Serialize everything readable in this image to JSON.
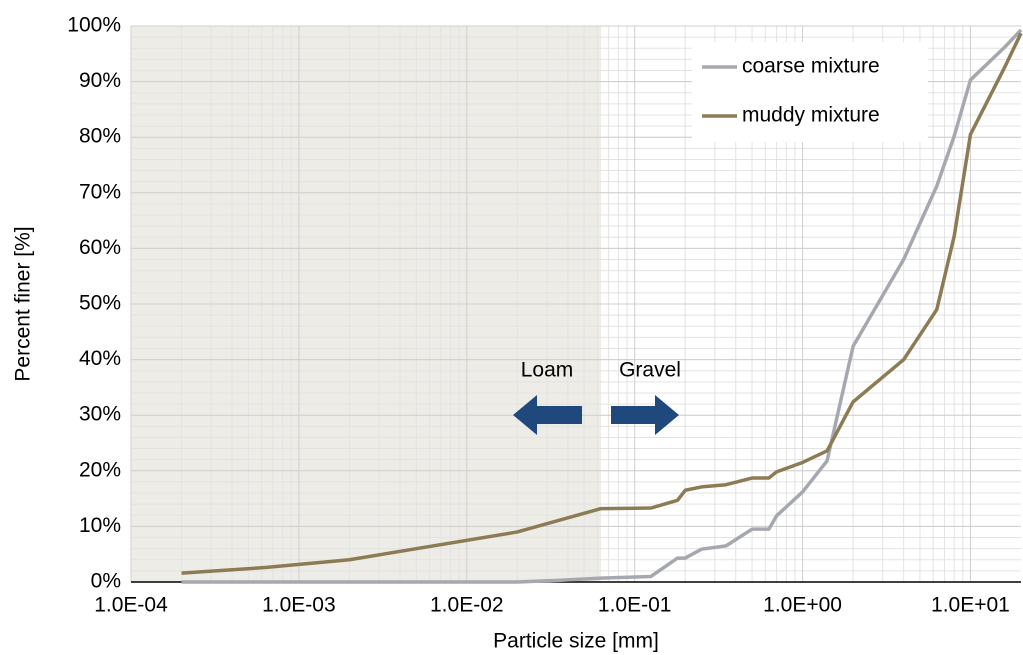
{
  "chart_data": {
    "type": "line",
    "xlabel": "Particle size [mm]",
    "ylabel": "Percent finer [%]",
    "xscale": "log",
    "xlim": [
      0.0001,
      20
    ],
    "ylim": [
      0,
      100
    ],
    "xticks": [
      {
        "value": 0.0001,
        "label": "1.0E-04"
      },
      {
        "value": 0.001,
        "label": "1.0E-03"
      },
      {
        "value": 0.01,
        "label": "1.0E-02"
      },
      {
        "value": 0.1,
        "label": "1.0E-01"
      },
      {
        "value": 1,
        "label": "1.0E+00"
      },
      {
        "value": 10,
        "label": "1.0E+01"
      }
    ],
    "yticks": [
      {
        "value": 0,
        "label": "0%"
      },
      {
        "value": 10,
        "label": "10%"
      },
      {
        "value": 20,
        "label": "20%"
      },
      {
        "value": 30,
        "label": "30%"
      },
      {
        "value": 40,
        "label": "40%"
      },
      {
        "value": 50,
        "label": "50%"
      },
      {
        "value": 60,
        "label": "60%"
      },
      {
        "value": 70,
        "label": "70%"
      },
      {
        "value": 80,
        "label": "80%"
      },
      {
        "value": 90,
        "label": "90%"
      },
      {
        "value": 100,
        "label": "100%"
      }
    ],
    "grid": true,
    "legend": "upper right",
    "shaded_region": {
      "xlim": [
        0.0001,
        0.063
      ],
      "color": "#edece6"
    },
    "annotations": [
      "Loam",
      "Gravel"
    ],
    "series": [
      {
        "name": "coarse mixture",
        "color": "#a6a8b0",
        "x": [
          0.0002,
          0.02,
          0.035,
          0.063,
          0.125,
          0.18,
          0.2,
          0.25,
          0.35,
          0.5,
          0.63,
          0.7,
          1.0,
          1.4,
          2.0,
          4.0,
          6.3,
          8.0,
          10,
          16,
          20
        ],
        "values": [
          0,
          0,
          0.3,
          0.7,
          1.0,
          4.3,
          4.3,
          5.9,
          6.5,
          9.5,
          9.5,
          11.9,
          16.2,
          21.8,
          42.4,
          58.0,
          71.2,
          80.2,
          90.3,
          96.2,
          99.3
        ]
      },
      {
        "name": "muddy mixture",
        "color": "#8c7b55",
        "x": [
          0.0002,
          0.00063,
          0.002,
          0.02,
          0.063,
          0.125,
          0.18,
          0.2,
          0.25,
          0.35,
          0.5,
          0.63,
          0.7,
          1.0,
          1.4,
          2.0,
          4.0,
          6.3,
          8.0,
          10,
          16,
          20
        ],
        "values": [
          1.6,
          2.6,
          4.0,
          9.0,
          13.2,
          13.3,
          14.7,
          16.5,
          17.1,
          17.5,
          18.7,
          18.7,
          19.8,
          21.5,
          23.6,
          32.4,
          40.0,
          49.0,
          62.2,
          80.5,
          92.6,
          98.7
        ]
      }
    ]
  }
}
